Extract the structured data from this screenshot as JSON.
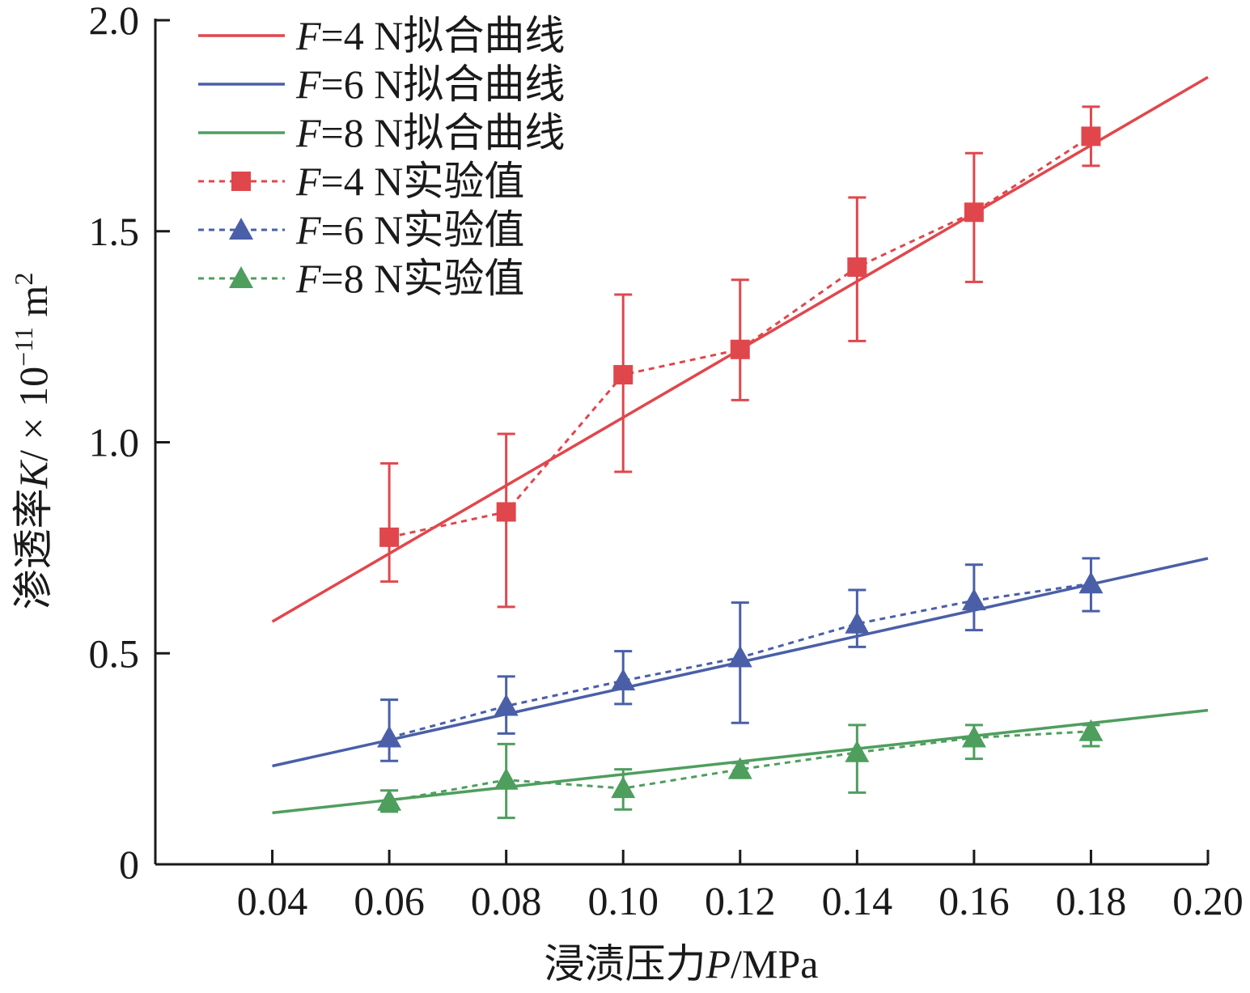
{
  "chart_data": {
    "type": "line",
    "xlabel": "浸渍压力P/MPa",
    "xlabel_parts": {
      "cn": "浸渍压力",
      "var": "P",
      "unit": "/MPa"
    },
    "ylabel": "渗透率K/×10⁻¹¹ m²",
    "ylabel_parts": {
      "cn": "渗透率",
      "var": "K",
      "sep": "/ × 10",
      "exp": "−11",
      "unit": " m",
      "unit_exp": "2"
    },
    "xlim": [
      0.04,
      0.2
    ],
    "ylim": [
      0,
      2.0
    ],
    "x_ticks": [
      0.04,
      0.06,
      0.08,
      0.1,
      0.12,
      0.14,
      0.16,
      0.18,
      0.2
    ],
    "x_tick_labels": [
      "0.04",
      "0.06",
      "0.08",
      "0.10",
      "0.12",
      "0.14",
      "0.16",
      "0.18",
      "0.20"
    ],
    "y_ticks": [
      0,
      0.5,
      1.0,
      1.5,
      2.0
    ],
    "y_tick_labels": [
      "0",
      "0.5",
      "1.0",
      "1.5",
      "2.0"
    ],
    "grid": false,
    "legend_position": "top-left",
    "fits": [
      {
        "name": "F=4 N拟合曲线",
        "label_var": "F",
        "label_rest": "=4 N拟合曲线",
        "color": "#e0474c",
        "x": [
          0.04,
          0.2
        ],
        "y": [
          0.575,
          1.865
        ]
      },
      {
        "name": "F=6 N拟合曲线",
        "label_var": "F",
        "label_rest": "=6 N拟合曲线",
        "color": "#4a5fa8",
        "x": [
          0.04,
          0.2
        ],
        "y": [
          0.233,
          0.725
        ]
      },
      {
        "name": "F=8 N拟合曲线",
        "label_var": "F",
        "label_rest": "=8 N拟合曲线",
        "color": "#4e9e5e",
        "x": [
          0.04,
          0.2
        ],
        "y": [
          0.122,
          0.365
        ]
      }
    ],
    "series": [
      {
        "name": "F=4 N实验值",
        "label_var": "F",
        "label_rest": "=4 N实验值",
        "color": "#e0474c",
        "marker": "square",
        "x": [
          0.06,
          0.08,
          0.1,
          0.12,
          0.14,
          0.16,
          0.18
        ],
        "y": [
          0.775,
          0.835,
          1.16,
          1.22,
          1.415,
          1.545,
          1.725
        ],
        "err_low": [
          0.67,
          0.61,
          0.93,
          1.1,
          1.24,
          1.38,
          1.655
        ],
        "err_high": [
          0.95,
          1.02,
          1.35,
          1.385,
          1.58,
          1.685,
          1.795
        ]
      },
      {
        "name": "F=6 N实验值",
        "label_var": "F",
        "label_rest": "=6 N实验值",
        "color": "#4a5fa8",
        "marker": "triangle",
        "x": [
          0.06,
          0.08,
          0.1,
          0.12,
          0.14,
          0.16,
          0.18
        ],
        "y": [
          0.3,
          0.375,
          0.435,
          0.49,
          0.57,
          0.625,
          0.665
        ],
        "err_low": [
          0.245,
          0.31,
          0.38,
          0.335,
          0.515,
          0.555,
          0.6
        ],
        "err_high": [
          0.39,
          0.445,
          0.505,
          0.62,
          0.65,
          0.71,
          0.725
        ]
      },
      {
        "name": "F=8 N实验值",
        "label_var": "F",
        "label_rest": "=8 N实验值",
        "color": "#4e9e5e",
        "marker": "triangle",
        "x": [
          0.06,
          0.08,
          0.1,
          0.12,
          0.14,
          0.16,
          0.18
        ],
        "y": [
          0.15,
          0.2,
          0.18,
          0.225,
          0.265,
          0.3,
          0.315
        ],
        "err_low": [
          0.125,
          0.11,
          0.13,
          0.205,
          0.17,
          0.25,
          0.28
        ],
        "err_high": [
          0.175,
          0.285,
          0.225,
          0.24,
          0.33,
          0.33,
          0.33
        ]
      }
    ]
  }
}
